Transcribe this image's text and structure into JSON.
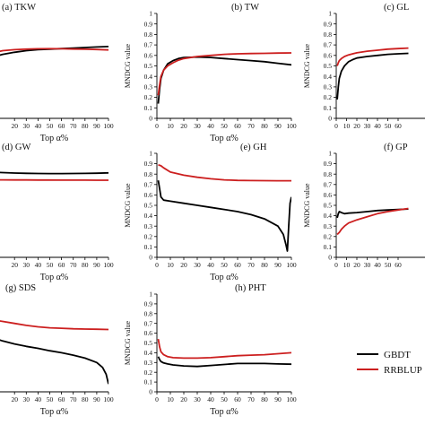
{
  "figure": {
    "legend": [
      {
        "label": "GBDT",
        "color": "#000000"
      },
      {
        "label": "RRBLUP",
        "color": "#cc1f1f"
      }
    ]
  },
  "chart_data": [
    {
      "type": "line",
      "title": "(a) TKW",
      "xlabel": "Top α%",
      "ylabel": "",
      "xlim": [
        0,
        100
      ],
      "ylim": [
        0,
        1
      ],
      "x_ticks": [
        "20",
        "30",
        "40",
        "50",
        "60",
        "70",
        "80",
        "90",
        "100"
      ],
      "y_ticks": [],
      "series": [
        {
          "name": "GBDT",
          "color": "#000000",
          "x": [
            0,
            10,
            20,
            30,
            40,
            50,
            60,
            70,
            80,
            90,
            100
          ],
          "y": [
            0.58,
            0.61,
            0.63,
            0.645,
            0.655,
            0.66,
            0.665,
            0.67,
            0.675,
            0.68,
            0.685
          ]
        },
        {
          "name": "RRBLUP",
          "color": "#cc1f1f",
          "x": [
            0,
            10,
            20,
            30,
            40,
            50,
            60,
            70,
            80,
            90,
            100
          ],
          "y": [
            0.62,
            0.645,
            0.655,
            0.66,
            0.663,
            0.664,
            0.663,
            0.661,
            0.659,
            0.656,
            0.652
          ]
        }
      ]
    },
    {
      "type": "line",
      "title": "(b) TW",
      "xlabel": "Top α%",
      "ylabel": "MNDCG value",
      "xlim": [
        0,
        100
      ],
      "ylim": [
        0,
        1
      ],
      "x_ticks": [
        "0",
        "10",
        "20",
        "30",
        "40",
        "50",
        "60",
        "70",
        "80",
        "90",
        "100"
      ],
      "y_ticks": [
        "0",
        "0.1",
        "0.2",
        "0.3",
        "0.4",
        "0.5",
        "0.6",
        "0.7",
        "0.8",
        "0.9",
        "1"
      ],
      "series": [
        {
          "name": "GBDT",
          "color": "#000000",
          "x": [
            1,
            2,
            3,
            5,
            8,
            12,
            16,
            20,
            30,
            40,
            50,
            60,
            70,
            80,
            90,
            100
          ],
          "y": [
            0.14,
            0.28,
            0.38,
            0.46,
            0.52,
            0.55,
            0.57,
            0.58,
            0.585,
            0.58,
            0.57,
            0.56,
            0.55,
            0.54,
            0.525,
            0.51
          ]
        },
        {
          "name": "RRBLUP",
          "color": "#cc1f1f",
          "x": [
            1,
            2,
            3,
            5,
            8,
            12,
            16,
            20,
            30,
            40,
            50,
            60,
            70,
            80,
            90,
            100
          ],
          "y": [
            0.22,
            0.32,
            0.4,
            0.46,
            0.5,
            0.53,
            0.555,
            0.57,
            0.59,
            0.6,
            0.61,
            0.615,
            0.618,
            0.62,
            0.622,
            0.624
          ]
        }
      ]
    },
    {
      "type": "line",
      "title": "(c) GL",
      "xlabel": "",
      "ylabel": "MNDCG value",
      "xlim": [
        0,
        100
      ],
      "ylim": [
        0,
        1
      ],
      "x_ticks": [
        "0",
        "10",
        "20",
        "30",
        "40",
        "50",
        "60"
      ],
      "y_ticks": [
        "0",
        "0.1",
        "0.2",
        "0.3",
        "0.4",
        "0.5",
        "0.6",
        "0.7",
        "0.8",
        "0.9",
        "1"
      ],
      "series": [
        {
          "name": "GBDT",
          "color": "#000000",
          "x": [
            1,
            2,
            3,
            5,
            8,
            12,
            16,
            20,
            30,
            40,
            50,
            60,
            70
          ],
          "y": [
            0.18,
            0.3,
            0.38,
            0.45,
            0.5,
            0.54,
            0.56,
            0.575,
            0.59,
            0.6,
            0.61,
            0.615,
            0.62
          ]
        },
        {
          "name": "RRBLUP",
          "color": "#cc1f1f",
          "x": [
            1,
            2,
            3,
            5,
            8,
            12,
            16,
            20,
            30,
            40,
            50,
            60,
            70
          ],
          "y": [
            0.5,
            0.53,
            0.55,
            0.57,
            0.59,
            0.605,
            0.615,
            0.625,
            0.64,
            0.65,
            0.66,
            0.665,
            0.67
          ]
        }
      ]
    },
    {
      "type": "line",
      "title": "(d) GW",
      "xlabel": "Top α%",
      "ylabel": "",
      "xlim": [
        0,
        100
      ],
      "ylim": [
        0,
        1
      ],
      "x_ticks": [
        "20",
        "30",
        "40",
        "50",
        "60",
        "70",
        "80",
        "90",
        "100"
      ],
      "y_ticks": [],
      "series": [
        {
          "name": "GBDT",
          "color": "#000000",
          "x": [
            0,
            10,
            20,
            30,
            40,
            50,
            60,
            70,
            80,
            90,
            100
          ],
          "y": [
            0.82,
            0.815,
            0.81,
            0.808,
            0.806,
            0.805,
            0.805,
            0.806,
            0.807,
            0.809,
            0.812
          ]
        },
        {
          "name": "RRBLUP",
          "color": "#cc1f1f",
          "x": [
            0,
            10,
            20,
            30,
            40,
            50,
            60,
            70,
            80,
            90,
            100
          ],
          "y": [
            0.745,
            0.745,
            0.744,
            0.744,
            0.743,
            0.743,
            0.742,
            0.742,
            0.742,
            0.741,
            0.741
          ]
        }
      ]
    },
    {
      "type": "line",
      "title": "(e) GH",
      "xlabel": "Top α%",
      "ylabel": "MNDCG value",
      "xlim": [
        0,
        100
      ],
      "ylim": [
        0,
        1
      ],
      "x_ticks": [
        "0",
        "10",
        "20",
        "30",
        "40",
        "50",
        "60",
        "70",
        "80",
        "90",
        "100"
      ],
      "y_ticks": [
        "0",
        "0.1",
        "0.2",
        "0.3",
        "0.4",
        "0.5",
        "0.6",
        "0.7",
        "0.8",
        "0.9",
        "1"
      ],
      "series": [
        {
          "name": "GBDT",
          "color": "#000000",
          "x": [
            1,
            2,
            3,
            5,
            10,
            20,
            30,
            40,
            50,
            60,
            70,
            80,
            90,
            94,
            96,
            97,
            98,
            99,
            100
          ],
          "y": [
            0.74,
            0.66,
            0.58,
            0.55,
            0.54,
            0.52,
            0.5,
            0.48,
            0.46,
            0.44,
            0.41,
            0.37,
            0.3,
            0.22,
            0.12,
            0.06,
            0.3,
            0.52,
            0.58
          ]
        },
        {
          "name": "RRBLUP",
          "color": "#cc1f1f",
          "x": [
            1,
            3,
            5,
            10,
            20,
            30,
            40,
            50,
            60,
            70,
            80,
            90,
            100
          ],
          "y": [
            0.89,
            0.88,
            0.86,
            0.82,
            0.79,
            0.77,
            0.755,
            0.745,
            0.74,
            0.738,
            0.737,
            0.736,
            0.736
          ]
        }
      ]
    },
    {
      "type": "line",
      "title": "(f) GP",
      "xlabel": "",
      "ylabel": "MNDCG value",
      "xlim": [
        0,
        100
      ],
      "ylim": [
        0,
        1
      ],
      "x_ticks": [
        "0",
        "10",
        "20",
        "30",
        "40",
        "50",
        "60"
      ],
      "y_ticks": [
        "0",
        "0.1",
        "0.2",
        "0.3",
        "0.4",
        "0.5",
        "0.6",
        "0.7",
        "0.8",
        "0.9",
        "1"
      ],
      "series": [
        {
          "name": "GBDT",
          "color": "#000000",
          "x": [
            1,
            2,
            3,
            5,
            8,
            12,
            20,
            30,
            40,
            50,
            60,
            70
          ],
          "y": [
            0.38,
            0.42,
            0.44,
            0.43,
            0.42,
            0.425,
            0.43,
            0.44,
            0.45,
            0.455,
            0.46,
            0.465
          ]
        },
        {
          "name": "RRBLUP",
          "color": "#cc1f1f",
          "x": [
            1,
            2,
            3,
            5,
            8,
            12,
            20,
            30,
            40,
            50,
            60,
            70
          ],
          "y": [
            0.22,
            0.23,
            0.24,
            0.27,
            0.3,
            0.33,
            0.36,
            0.39,
            0.42,
            0.44,
            0.455,
            0.47
          ]
        }
      ]
    },
    {
      "type": "line",
      "title": "(g) SDS",
      "xlabel": "Top α%",
      "ylabel": "",
      "xlim": [
        0,
        100
      ],
      "ylim": [
        0,
        1
      ],
      "x_ticks": [
        "20",
        "30",
        "40",
        "50",
        "60",
        "70",
        "80",
        "90",
        "100"
      ],
      "y_ticks": [],
      "series": [
        {
          "name": "GBDT",
          "color": "#000000",
          "x": [
            0,
            10,
            20,
            30,
            40,
            50,
            60,
            70,
            80,
            90,
            95,
            98,
            100
          ],
          "y": [
            0.56,
            0.52,
            0.49,
            0.465,
            0.445,
            0.42,
            0.4,
            0.375,
            0.345,
            0.3,
            0.25,
            0.18,
            0.08
          ]
        },
        {
          "name": "RRBLUP",
          "color": "#cc1f1f",
          "x": [
            0,
            10,
            20,
            30,
            40,
            50,
            60,
            70,
            80,
            90,
            100
          ],
          "y": [
            0.74,
            0.72,
            0.7,
            0.68,
            0.665,
            0.655,
            0.65,
            0.645,
            0.642,
            0.64,
            0.638
          ]
        }
      ]
    },
    {
      "type": "line",
      "title": "(h) PHT",
      "xlabel": "Top α%",
      "ylabel": "MNDCG value",
      "xlim": [
        0,
        100
      ],
      "ylim": [
        0,
        1
      ],
      "x_ticks": [
        "0",
        "10",
        "20",
        "30",
        "40",
        "50",
        "60",
        "70",
        "80",
        "90",
        "100"
      ],
      "y_ticks": [
        "0",
        "0.1",
        "0.2",
        "0.3",
        "0.4",
        "0.5",
        "0.6",
        "0.7",
        "0.8",
        "0.9",
        "1"
      ],
      "series": [
        {
          "name": "GBDT",
          "color": "#000000",
          "x": [
            1,
            2,
            3,
            5,
            8,
            12,
            20,
            30,
            40,
            50,
            60,
            70,
            80,
            90,
            100
          ],
          "y": [
            0.36,
            0.33,
            0.31,
            0.295,
            0.285,
            0.275,
            0.265,
            0.26,
            0.27,
            0.28,
            0.29,
            0.29,
            0.29,
            0.285,
            0.283
          ]
        },
        {
          "name": "RRBLUP",
          "color": "#cc1f1f",
          "x": [
            1,
            2,
            3,
            5,
            8,
            12,
            20,
            30,
            40,
            50,
            60,
            70,
            80,
            90,
            100
          ],
          "y": [
            0.54,
            0.46,
            0.41,
            0.38,
            0.36,
            0.35,
            0.345,
            0.345,
            0.35,
            0.36,
            0.37,
            0.375,
            0.38,
            0.39,
            0.4
          ]
        }
      ]
    }
  ]
}
